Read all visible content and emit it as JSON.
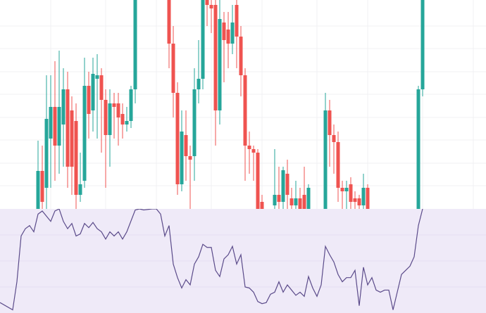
{
  "chart_data": [
    {
      "type": "candlestick",
      "up_color": "#26a69a",
      "down_color": "#ef5350",
      "grid": true,
      "xlim": [
        0,
        115
      ],
      "ylim": [
        0,
        297
      ],
      "xticks": [
        12,
        25,
        37,
        50,
        62,
        75,
        87,
        100,
        112
      ],
      "yticks": [
        33,
        65,
        98,
        130,
        163,
        195,
        228,
        260
      ],
      "x": [
        9,
        10,
        11,
        12,
        13,
        14,
        15,
        16,
        17,
        18,
        19,
        20,
        21,
        22,
        23,
        24,
        25,
        26,
        27,
        28,
        29,
        30,
        31,
        32,
        40,
        41,
        42,
        43,
        44,
        45,
        46,
        47,
        48,
        49,
        50,
        51,
        52,
        53,
        54,
        55,
        56,
        57,
        58,
        59,
        60,
        61,
        62,
        65,
        66,
        67,
        68,
        69,
        70,
        71,
        72,
        73,
        77,
        78,
        79,
        80,
        81,
        82,
        83,
        84,
        85,
        86,
        87,
        99,
        100
      ],
      "open": [
        0,
        54,
        30,
        100,
        145,
        90,
        120,
        170,
        140,
        125,
        20,
        40,
        175,
        140,
        185,
        190,
        155,
        105,
        150,
        150,
        135,
        120,
        125,
        170,
        300,
        235,
        165,
        35,
        105,
        75,
        75,
        170,
        185,
        300,
        290,
        290,
        140,
        265,
        255,
        235,
        290,
        245,
        190,
        90,
        85,
        80,
        10,
        5,
        20,
        10,
        50,
        15,
        5,
        15,
        20,
        0,
        0,
        140,
        105,
        95,
        30,
        25,
        35,
        15,
        15,
        5,
        30,
        0,
        170
      ],
      "high": [
        97,
        90,
        190,
        190,
        210,
        225,
        200,
        195,
        160,
        150,
        80,
        215,
        195,
        215,
        220,
        200,
        170,
        170,
        165,
        165,
        150,
        145,
        175,
        320,
        300,
        260,
        180,
        140,
        140,
        90,
        200,
        240,
        310,
        310,
        300,
        297,
        300,
        280,
        280,
        290,
        297,
        260,
        200,
        110,
        90,
        85,
        20,
        85,
        60,
        60,
        70,
        30,
        40,
        30,
        60,
        35,
        165,
        155,
        120,
        110,
        40,
        40,
        45,
        25,
        20,
        50,
        35,
        175,
        310
      ],
      "low": [
        0,
        0,
        0,
        30,
        40,
        50,
        60,
        30,
        20,
        0,
        10,
        30,
        100,
        110,
        100,
        80,
        30,
        60,
        100,
        90,
        100,
        110,
        115,
        150,
        200,
        130,
        20,
        25,
        40,
        0,
        40,
        150,
        170,
        260,
        250,
        90,
        120,
        180,
        200,
        220,
        200,
        160,
        40,
        50,
        40,
        0,
        0,
        0,
        0,
        0,
        0,
        0,
        0,
        0,
        0,
        0,
        0,
        60,
        50,
        10,
        0,
        0,
        0,
        0,
        0,
        0,
        0,
        0,
        160
      ],
      "close": [
        54,
        10,
        128,
        145,
        90,
        145,
        170,
        60,
        60,
        20,
        35,
        175,
        135,
        192,
        190,
        155,
        105,
        150,
        145,
        130,
        120,
        125,
        170,
        300,
        235,
        165,
        35,
        110,
        75,
        70,
        170,
        185,
        300,
        290,
        285,
        140,
        270,
        240,
        235,
        265,
        245,
        190,
        90,
        85,
        80,
        0,
        0,
        20,
        10,
        55,
        20,
        5,
        15,
        0,
        0,
        30,
        140,
        105,
        95,
        30,
        25,
        30,
        10,
        10,
        5,
        30,
        0,
        170,
        300
      ]
    },
    {
      "type": "line",
      "color": "#5b4b8a",
      "background": "#efeaf8",
      "grid": true,
      "xlim": [
        0,
        115
      ],
      "ylim": [
        0,
        100
      ],
      "x": [
        0,
        3,
        4,
        5,
        6,
        7,
        8,
        9,
        10,
        12,
        13,
        14,
        15,
        16,
        17,
        18,
        19,
        20,
        21,
        22,
        23,
        24,
        25,
        26,
        27,
        28,
        29,
        30,
        32,
        33,
        34,
        36,
        37,
        38,
        39,
        40,
        41,
        42,
        43,
        44,
        45,
        46,
        47,
        48,
        49,
        50,
        51,
        52,
        53,
        54,
        55,
        56,
        57,
        58,
        59,
        60,
        61,
        62,
        63,
        64,
        65,
        66,
        67,
        68,
        69,
        70,
        71,
        72,
        73,
        74,
        75,
        76,
        77,
        78,
        79,
        80,
        81,
        82,
        83,
        84,
        85,
        86,
        87,
        88,
        89,
        90,
        91,
        92,
        93,
        94,
        95,
        96,
        97,
        98,
        99,
        100
      ],
      "values": [
        10,
        3,
        30,
        74,
        81,
        84,
        78,
        95,
        98,
        88,
        98,
        100,
        88,
        81,
        86,
        74,
        76,
        86,
        82,
        87,
        81,
        78,
        71,
        78,
        74,
        78,
        71,
        78,
        99,
        100,
        99,
        100,
        100,
        95,
        74,
        84,
        47,
        34,
        24,
        32,
        27,
        47,
        54,
        66,
        63,
        63,
        41,
        35,
        52,
        56,
        64,
        47,
        56,
        25,
        24,
        20,
        11,
        9,
        10,
        18,
        20,
        30,
        20,
        27,
        22,
        17,
        20,
        16,
        35,
        24,
        16,
        27,
        64,
        56,
        49,
        37,
        30,
        34,
        34,
        41,
        7,
        44,
        27,
        34,
        22,
        20,
        22,
        22,
        3,
        20,
        37,
        41,
        45,
        54,
        84,
        100
      ]
    }
  ]
}
